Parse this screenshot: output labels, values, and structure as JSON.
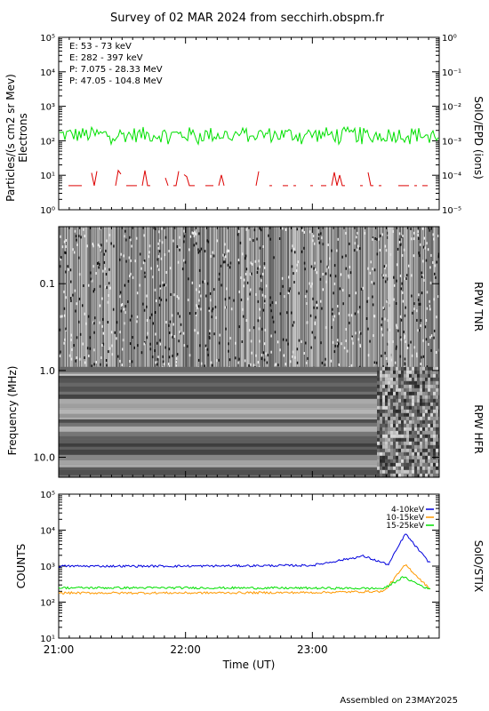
{
  "title": "Survey of 02 MAR 2024 from secchirh.obspm.fr",
  "footer": "Assembled on 23MAY2025",
  "colors": {
    "green": "#00e000",
    "red": "#dd0000",
    "black": "#000000",
    "blue": "#0000dd",
    "orange": "#ff9900"
  },
  "chart_data": [
    {
      "id": "epd",
      "type": "line",
      "ylabel_line1": "Particles/(s cm2 sr Mev)",
      "ylabel_line2": "Electrons",
      "ylabel_right": "SolO/EPD (ions)",
      "ylim": [
        1,
        100000
      ],
      "yscale": "log",
      "yticks_left": [
        "10⁰",
        "10¹",
        "10²",
        "10³",
        "10⁴",
        "10⁵"
      ],
      "ylim_right": [
        1e-05,
        1
      ],
      "yticks_right": [
        "10⁻⁵",
        "10⁻⁴",
        "10⁻³",
        "10⁻²",
        "10⁻¹",
        "10⁰"
      ],
      "legend": [
        {
          "label": "E: 53 - 73 keV",
          "color": "#00e000"
        },
        {
          "label": "E: 282 - 397 keV",
          "color": "#dd0000"
        },
        {
          "label": "P: 7.075 - 28.33 MeV",
          "color": "#000000"
        },
        {
          "label": "P: 47.05 - 104.8 MeV",
          "color": "#0000dd"
        }
      ],
      "series": [
        {
          "name": "E: 53 - 73 keV",
          "typical": 150,
          "range": [
            80,
            300
          ]
        },
        {
          "name": "E: 282 - 397 keV",
          "typical": 5,
          "range": [
            4,
            14
          ]
        }
      ]
    },
    {
      "id": "rpw",
      "type": "heatmap",
      "ylabel": "Frequency (MHz)",
      "ylabel_right_top": "RPW TNR",
      "ylabel_right_bottom": "RPW HFR",
      "yscale": "log",
      "yticks": [
        {
          "value": 0.1,
          "label": "0.1"
        },
        {
          "value": 1.0,
          "label": "1.0"
        },
        {
          "value": 10.0,
          "label": "10.0"
        }
      ],
      "ylim": [
        0.022,
        17
      ]
    },
    {
      "id": "stix",
      "type": "line",
      "ylabel": "COUNTS",
      "ylabel_right": "SolO/STIX",
      "yscale": "log",
      "ylim": [
        10,
        100000
      ],
      "yticks": [
        "10¹",
        "10²",
        "10³",
        "10⁴",
        "10⁵"
      ],
      "legend": [
        {
          "label": "4-10keV",
          "color": "#0000dd"
        },
        {
          "label": "10-15keV",
          "color": "#ff9900"
        },
        {
          "label": "15-25keV",
          "color": "#00e000"
        }
      ],
      "series": [
        {
          "name": "4-10keV",
          "x": [
            "21:00",
            "22:00",
            "23:00",
            "23:24",
            "23:36",
            "23:44",
            "23:55"
          ],
          "values": [
            1000,
            1000,
            1050,
            1900,
            1100,
            8000,
            1300
          ]
        },
        {
          "name": "10-15keV",
          "x": [
            "21:00",
            "22:00",
            "23:00",
            "23:34",
            "23:44",
            "23:55"
          ],
          "values": [
            180,
            180,
            185,
            200,
            1100,
            250
          ]
        },
        {
          "name": "15-25keV",
          "x": [
            "21:00",
            "22:00",
            "23:00",
            "23:34",
            "23:43",
            "23:55"
          ],
          "values": [
            250,
            250,
            245,
            240,
            500,
            230
          ]
        }
      ],
      "xlabel": "Time (UT)",
      "xticks": [
        "21:00",
        "22:00",
        "23:00"
      ],
      "xlim": [
        "21:00",
        "24:00"
      ]
    }
  ]
}
